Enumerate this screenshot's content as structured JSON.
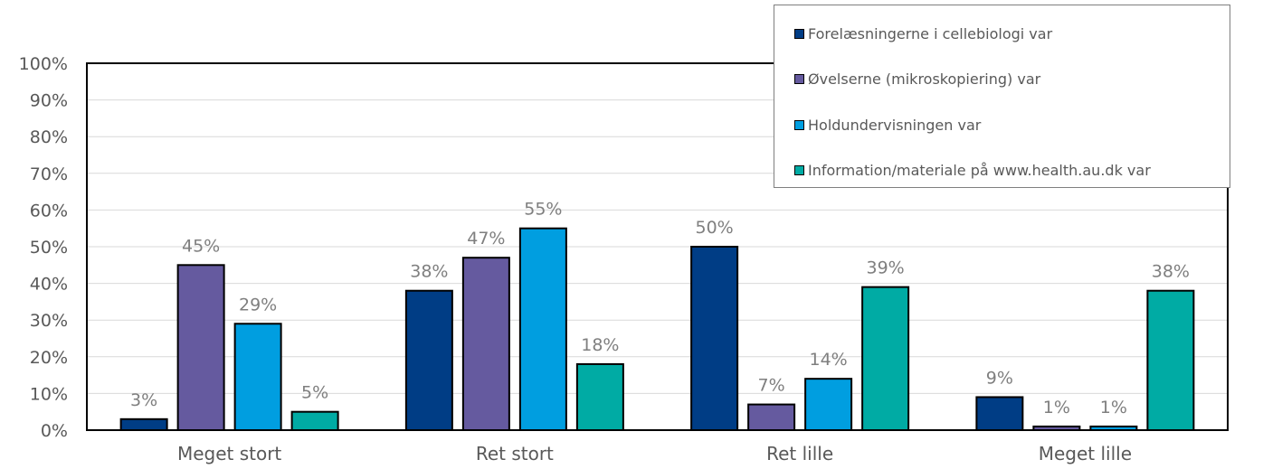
{
  "chart_data": {
    "type": "bar",
    "categories": [
      "Meget stort",
      "Ret stort",
      "Ret lille",
      "Meget lille"
    ],
    "series": [
      {
        "name": "Forelæsningerne i cellebiologi var",
        "color": "#003d85",
        "values": [
          3,
          38,
          50,
          9
        ],
        "labels": [
          "3%",
          "38%",
          "50%",
          "9%"
        ]
      },
      {
        "name": "Øvelserne (mikroskopiering) var",
        "color": "#655a9f",
        "values": [
          45,
          47,
          7,
          1
        ],
        "labels": [
          "45%",
          "47%",
          "7%",
          "1%"
        ]
      },
      {
        "name": "Holdundervisningen var",
        "color": "#009ee0",
        "values": [
          29,
          55,
          14,
          1
        ],
        "labels": [
          "29%",
          "55%",
          "14%",
          "1%"
        ]
      },
      {
        "name": "Information/materiale på www.health.au.dk var",
        "color": "#00aba4",
        "values": [
          5,
          18,
          39,
          38
        ],
        "labels": [
          "5%",
          "18%",
          "39%",
          "38%"
        ]
      }
    ],
    "y_ticks": [
      "0%",
      "10%",
      "20%",
      "30%",
      "40%",
      "50%",
      "60%",
      "70%",
      "80%",
      "90%",
      "100%"
    ],
    "ylim": [
      0,
      100
    ],
    "grid": true,
    "legend_position": "top-right"
  }
}
